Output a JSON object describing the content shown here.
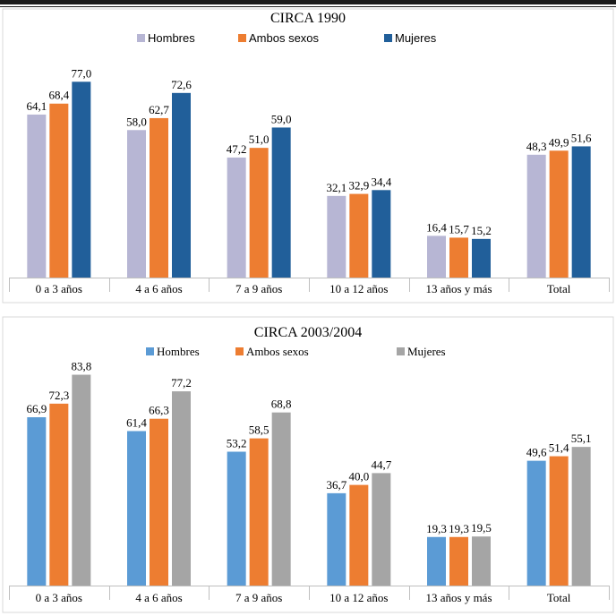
{
  "chart_data": [
    {
      "type": "bar",
      "title": "CIRCA 1990",
      "categories": [
        "0 a 3 años",
        "4 a 6 años",
        "7 a 9 años",
        "10 a 12 años",
        "13 años y más",
        "Total"
      ],
      "series": [
        {
          "name": "Hombres",
          "values": [
            "64,1",
            "58,0",
            "47,2",
            "32,1",
            "16,4",
            "48,3"
          ]
        },
        {
          "name": "Ambos sexos",
          "values": [
            "68,4",
            "62,7",
            "51,0",
            "32,9",
            "15,7",
            "49,9"
          ]
        },
        {
          "name": "Mujeres",
          "values": [
            "77,0",
            "72,6",
            "59,0",
            "34,4",
            "15,2",
            "51,6"
          ]
        }
      ],
      "colors": [
        "#b7b6d4",
        "#ed7d31",
        "#215f9a"
      ],
      "legend_position": "top",
      "ylim": [
        0,
        100
      ]
    },
    {
      "type": "bar",
      "title": "CIRCA 2003/2004",
      "categories": [
        "0 a 3 años",
        "4 a 6 años",
        "7 a 9 años",
        "10 a 12 años",
        "13 años y más",
        "Total"
      ],
      "series": [
        {
          "name": "Hombres",
          "values": [
            "66,9",
            "61,4",
            "53,2",
            "36,7",
            "19,3",
            "49,6"
          ]
        },
        {
          "name": "Ambos sexos",
          "values": [
            "72,3",
            "66,3",
            "58,5",
            "40,0",
            "19,3",
            "51,4"
          ]
        },
        {
          "name": "Mujeres",
          "values": [
            "83,8",
            "77,2",
            "68,8",
            "44,7",
            "19,5",
            "55,1"
          ]
        }
      ],
      "colors": [
        "#5b9bd5",
        "#ed7d31",
        "#a5a5a5"
      ],
      "legend_position": "top",
      "ylim": [
        0,
        100
      ]
    }
  ]
}
